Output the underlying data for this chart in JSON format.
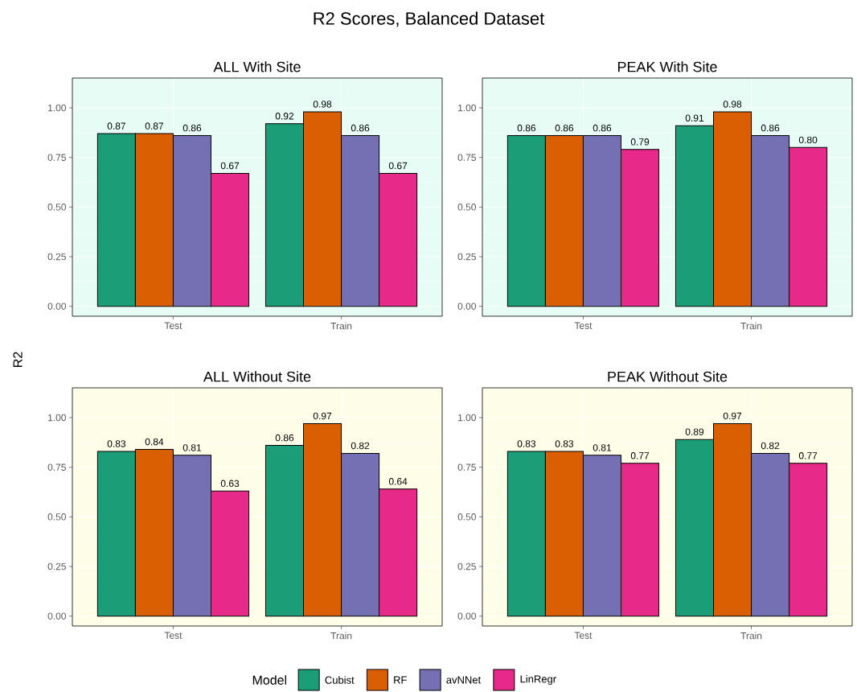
{
  "chart_data": [
    {
      "type": "bar",
      "title": "ALL With Site",
      "annotations": [
        "R2 Scores, Balanced Dataset"
      ],
      "ylabel": "R2",
      "legend": "bottom",
      "legend_title": "Model",
      "grid": true,
      "categories": [
        "Test",
        "Train"
      ],
      "ylim": [
        -0.05,
        1.15
      ],
      "yticks": [
        {
          "value": 0,
          "label": "0.00"
        },
        {
          "value": 0.25,
          "label": "0.25"
        },
        {
          "value": 0.5,
          "label": "0.50"
        },
        {
          "value": 0.75,
          "label": "0.75"
        },
        {
          "value": 1,
          "label": "1.00"
        }
      ],
      "series": [
        {
          "name": "Cubist",
          "color": "#1b9e77",
          "values": [
            0.87,
            0.92
          ],
          "value_labels": [
            "0.87",
            "0.92"
          ]
        },
        {
          "name": "RF",
          "color": "#d95f02",
          "values": [
            0.87,
            0.98
          ],
          "value_labels": [
            "0.87",
            "0.98"
          ]
        },
        {
          "name": "avNNet",
          "color": "#7570b3",
          "values": [
            0.86,
            0.86
          ],
          "value_labels": [
            "0.86",
            "0.86"
          ]
        },
        {
          "name": "LinRegr",
          "color": "#e7298a",
          "values": [
            0.67,
            0.67
          ],
          "value_labels": [
            "0.67",
            "0.67"
          ]
        }
      ]
    },
    {
      "type": "bar",
      "title": "PEAK With Site",
      "grid": true,
      "categories": [
        "Test",
        "Train"
      ],
      "ylim": [
        -0.05,
        1.15
      ],
      "yticks": [
        {
          "value": 0,
          "label": "0.00"
        },
        {
          "value": 0.25,
          "label": "0.25"
        },
        {
          "value": 0.5,
          "label": "0.50"
        },
        {
          "value": 0.75,
          "label": "0.75"
        },
        {
          "value": 1,
          "label": "1.00"
        }
      ],
      "series": [
        {
          "color": "#1b9e77",
          "values": [
            0.86,
            0.91
          ],
          "value_labels": [
            "0.86",
            "0.91"
          ]
        },
        {
          "color": "#d95f02",
          "values": [
            0.86,
            0.98
          ],
          "value_labels": [
            "0.86",
            "0.98"
          ]
        },
        {
          "color": "#7570b3",
          "values": [
            0.86,
            0.86
          ],
          "value_labels": [
            "0.86",
            "0.86"
          ]
        },
        {
          "color": "#e7298a",
          "values": [
            0.79,
            0.8
          ],
          "value_labels": [
            "0.79",
            "0.80"
          ]
        }
      ]
    },
    {
      "type": "bar",
      "title": "ALL Without Site",
      "grid": true,
      "categories": [
        "Test",
        "Train"
      ],
      "ylim": [
        -0.05,
        1.15
      ],
      "yticks": [
        {
          "value": 0,
          "label": "0.00"
        },
        {
          "value": 0.25,
          "label": "0.25"
        },
        {
          "value": 0.5,
          "label": "0.50"
        },
        {
          "value": 0.75,
          "label": "0.75"
        },
        {
          "value": 1,
          "label": "1.00"
        }
      ],
      "series": [
        {
          "color": "#1b9e77",
          "values": [
            0.83,
            0.86
          ],
          "value_labels": [
            "0.83",
            "0.86"
          ]
        },
        {
          "color": "#d95f02",
          "values": [
            0.84,
            0.97
          ],
          "value_labels": [
            "0.84",
            "0.97"
          ]
        },
        {
          "color": "#7570b3",
          "values": [
            0.81,
            0.82
          ],
          "value_labels": [
            "0.81",
            "0.82"
          ]
        },
        {
          "color": "#e7298a",
          "values": [
            0.63,
            0.64
          ],
          "value_labels": [
            "0.63",
            "0.64"
          ]
        }
      ]
    },
    {
      "type": "bar",
      "title": "PEAK Without Site",
      "grid": true,
      "categories": [
        "Test",
        "Train"
      ],
      "ylim": [
        -0.05,
        1.15
      ],
      "yticks": [
        {
          "value": 0,
          "label": "0.00"
        },
        {
          "value": 0.25,
          "label": "0.25"
        },
        {
          "value": 0.5,
          "label": "0.50"
        },
        {
          "value": 0.75,
          "label": "0.75"
        },
        {
          "value": 1,
          "label": "1.00"
        }
      ],
      "series": [
        {
          "color": "#1b9e77",
          "values": [
            0.83,
            0.89
          ],
          "value_labels": [
            "0.83",
            "0.89"
          ]
        },
        {
          "color": "#d95f02",
          "values": [
            0.83,
            0.97
          ],
          "value_labels": [
            "0.83",
            "0.97"
          ]
        },
        {
          "color": "#7570b3",
          "values": [
            0.81,
            0.82
          ],
          "value_labels": [
            "0.81",
            "0.82"
          ]
        },
        {
          "color": "#e7298a",
          "values": [
            0.77,
            0.77
          ],
          "value_labels": [
            "0.77",
            "0.77"
          ]
        }
      ]
    }
  ]
}
